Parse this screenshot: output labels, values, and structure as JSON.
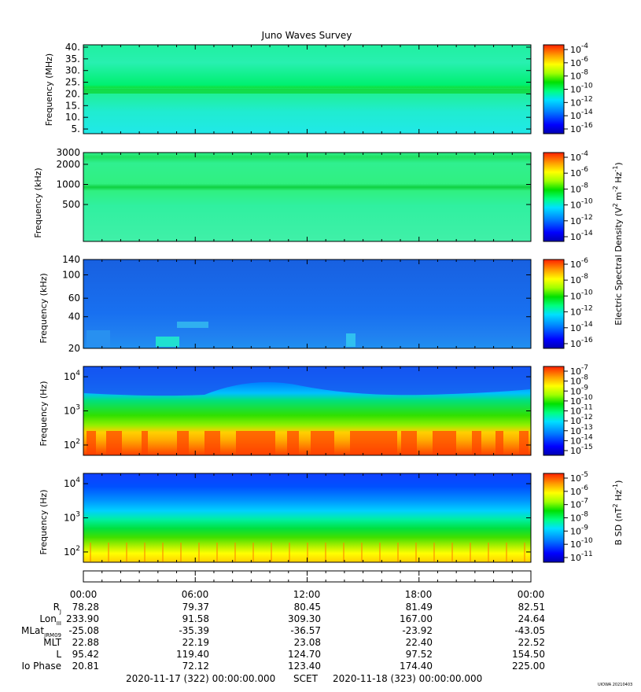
{
  "title": "Juno Waves Survey",
  "footer_left": "2020-11-17 (322) 00:00:00.000",
  "footer_mid": "SCET",
  "footer_right": "2020-11-18 (323) 00:00:00.000",
  "watermark": "UIOWA 20210403",
  "colors": {
    "colormap": [
      "#0000b0",
      "#0000ff",
      "#0080ff",
      "#00e0ff",
      "#00ff80",
      "#00e000",
      "#a0ff00",
      "#ffff00",
      "#ffa000",
      "#ff2000"
    ],
    "axis": "#000000"
  },
  "chart_data": [
    {
      "type": "heatmap",
      "name": "panel-hfr-high",
      "ylabel": "Frequency (MHz)",
      "y_scale": "linear",
      "ylim": [
        3,
        41
      ],
      "yticks": [
        {
          "value": 40,
          "label": "40."
        },
        {
          "value": 35,
          "label": "35."
        },
        {
          "value": 30,
          "label": "30."
        },
        {
          "value": 25,
          "label": "25."
        },
        {
          "value": 20,
          "label": "20."
        },
        {
          "value": 15,
          "label": "15."
        },
        {
          "value": 10,
          "label": "10."
        },
        {
          "value": 5,
          "label": "5."
        }
      ],
      "colorbar": {
        "ticks": [
          {
            "value": -4,
            "label": "10",
            "exp": "-4"
          },
          {
            "value": -6,
            "label": "10",
            "exp": "-6"
          },
          {
            "value": -8,
            "label": "10",
            "exp": "-8"
          },
          {
            "value": -10,
            "label": "10",
            "exp": "-10"
          },
          {
            "value": -12,
            "label": "10",
            "exp": "-12"
          },
          {
            "value": -14,
            "label": "10",
            "exp": "-14"
          },
          {
            "value": -16,
            "label": "10",
            "exp": "-16"
          }
        ]
      }
    },
    {
      "type": "heatmap",
      "name": "panel-hfr-low",
      "ylabel": "Frequency (kHz)",
      "y_scale": "log",
      "ylim": [
        140,
        3000
      ],
      "yticks": [
        {
          "value": 3000,
          "label": "3000"
        },
        {
          "value": 2000,
          "label": "2000"
        },
        {
          "value": 1000,
          "label": "1000"
        },
        {
          "value": 500,
          "label": "500"
        }
      ],
      "colorbar": {
        "label": "Electric Spectral Density (V",
        "ticks": [
          {
            "value": -4,
            "label": "10",
            "exp": "-4"
          },
          {
            "value": -6,
            "label": "10",
            "exp": "-6"
          },
          {
            "value": -8,
            "label": "10",
            "exp": "-8"
          },
          {
            "value": -10,
            "label": "10",
            "exp": "-10"
          },
          {
            "value": -12,
            "label": "10",
            "exp": "-12"
          },
          {
            "value": -14,
            "label": "10",
            "exp": "-14"
          }
        ]
      }
    },
    {
      "type": "heatmap",
      "name": "panel-lfr-high",
      "ylabel": "Frequency (kHz)",
      "y_scale": "log",
      "ylim": [
        20,
        140
      ],
      "yticks": [
        {
          "value": 140,
          "label": "140"
        },
        {
          "value": 100,
          "label": "100"
        },
        {
          "value": 60,
          "label": "60"
        },
        {
          "value": 40,
          "label": "40"
        },
        {
          "value": 20,
          "label": "20"
        }
      ],
      "colorbar": {
        "ticks": [
          {
            "value": -6,
            "label": "10",
            "exp": "-6"
          },
          {
            "value": -8,
            "label": "10",
            "exp": "-8"
          },
          {
            "value": -10,
            "label": "10",
            "exp": "-10"
          },
          {
            "value": -12,
            "label": "10",
            "exp": "-12"
          },
          {
            "value": -14,
            "label": "10",
            "exp": "-14"
          },
          {
            "value": -16,
            "label": "10",
            "exp": "-16"
          }
        ]
      }
    },
    {
      "type": "heatmap",
      "name": "panel-lfr-low",
      "ylabel": "Frequency (Hz)",
      "y_scale": "log",
      "ylim": [
        50,
        20000
      ],
      "yticks": [
        {
          "value": 10000,
          "label": "10",
          "exp": "4"
        },
        {
          "value": 1000,
          "label": "10",
          "exp": "3"
        },
        {
          "value": 100,
          "label": "10",
          "exp": "2"
        }
      ],
      "colorbar": {
        "ticks": [
          {
            "value": -7,
            "label": "10",
            "exp": "-7"
          },
          {
            "value": -8,
            "label": "10",
            "exp": "-8"
          },
          {
            "value": -9,
            "label": "10",
            "exp": "-9"
          },
          {
            "value": -10,
            "label": "10",
            "exp": "-10"
          },
          {
            "value": -11,
            "label": "10",
            "exp": "-11"
          },
          {
            "value": -12,
            "label": "10",
            "exp": "-12"
          },
          {
            "value": -13,
            "label": "10",
            "exp": "-13"
          },
          {
            "value": -14,
            "label": "10",
            "exp": "-14"
          },
          {
            "value": -15,
            "label": "10",
            "exp": "-15"
          }
        ]
      }
    },
    {
      "type": "heatmap",
      "name": "panel-magnetic",
      "ylabel": "Frequency (Hz)",
      "y_scale": "log",
      "ylim": [
        50,
        20000
      ],
      "yticks": [
        {
          "value": 10000,
          "label": "10",
          "exp": "4"
        },
        {
          "value": 1000,
          "label": "10",
          "exp": "3"
        },
        {
          "value": 100,
          "label": "10",
          "exp": "2"
        }
      ],
      "colorbar": {
        "label": "B SD (nT",
        "ticks": [
          {
            "value": -5,
            "label": "10",
            "exp": "-5"
          },
          {
            "value": -6,
            "label": "10",
            "exp": "-6"
          },
          {
            "value": -7,
            "label": "10",
            "exp": "-7"
          },
          {
            "value": -8,
            "label": "10",
            "exp": "-8"
          },
          {
            "value": -9,
            "label": "10",
            "exp": "-9"
          },
          {
            "value": -10,
            "label": "10",
            "exp": "-10"
          },
          {
            "value": -11,
            "label": "10",
            "exp": "-11"
          }
        ]
      }
    }
  ],
  "ephemeris": {
    "times": [
      "00:00",
      "06:00",
      "12:00",
      "18:00",
      "00:00"
    ],
    "rows": [
      {
        "label": "R",
        "sub": "J",
        "values": [
          "78.28",
          "79.37",
          "80.45",
          "81.49",
          "82.51"
        ]
      },
      {
        "label": "Lon",
        "sub": "III",
        "values": [
          "233.90",
          "91.58",
          "309.30",
          "167.00",
          "24.64"
        ]
      },
      {
        "label": "MLat",
        "sub": "JRM09",
        "values": [
          "-25.08",
          "-35.39",
          "-36.57",
          "-23.92",
          "-43.05"
        ]
      },
      {
        "label": "MLT",
        "sub": "",
        "values": [
          "22.88",
          "22.19",
          "23.08",
          "22.40",
          "22.52"
        ]
      },
      {
        "label": "L",
        "sub": "",
        "values": [
          "95.42",
          "119.40",
          "124.70",
          "97.52",
          "154.50"
        ]
      },
      {
        "label": "Io Phase",
        "sub": "",
        "values": [
          "20.81",
          "72.12",
          "123.40",
          "174.40",
          "225.00"
        ]
      }
    ]
  }
}
